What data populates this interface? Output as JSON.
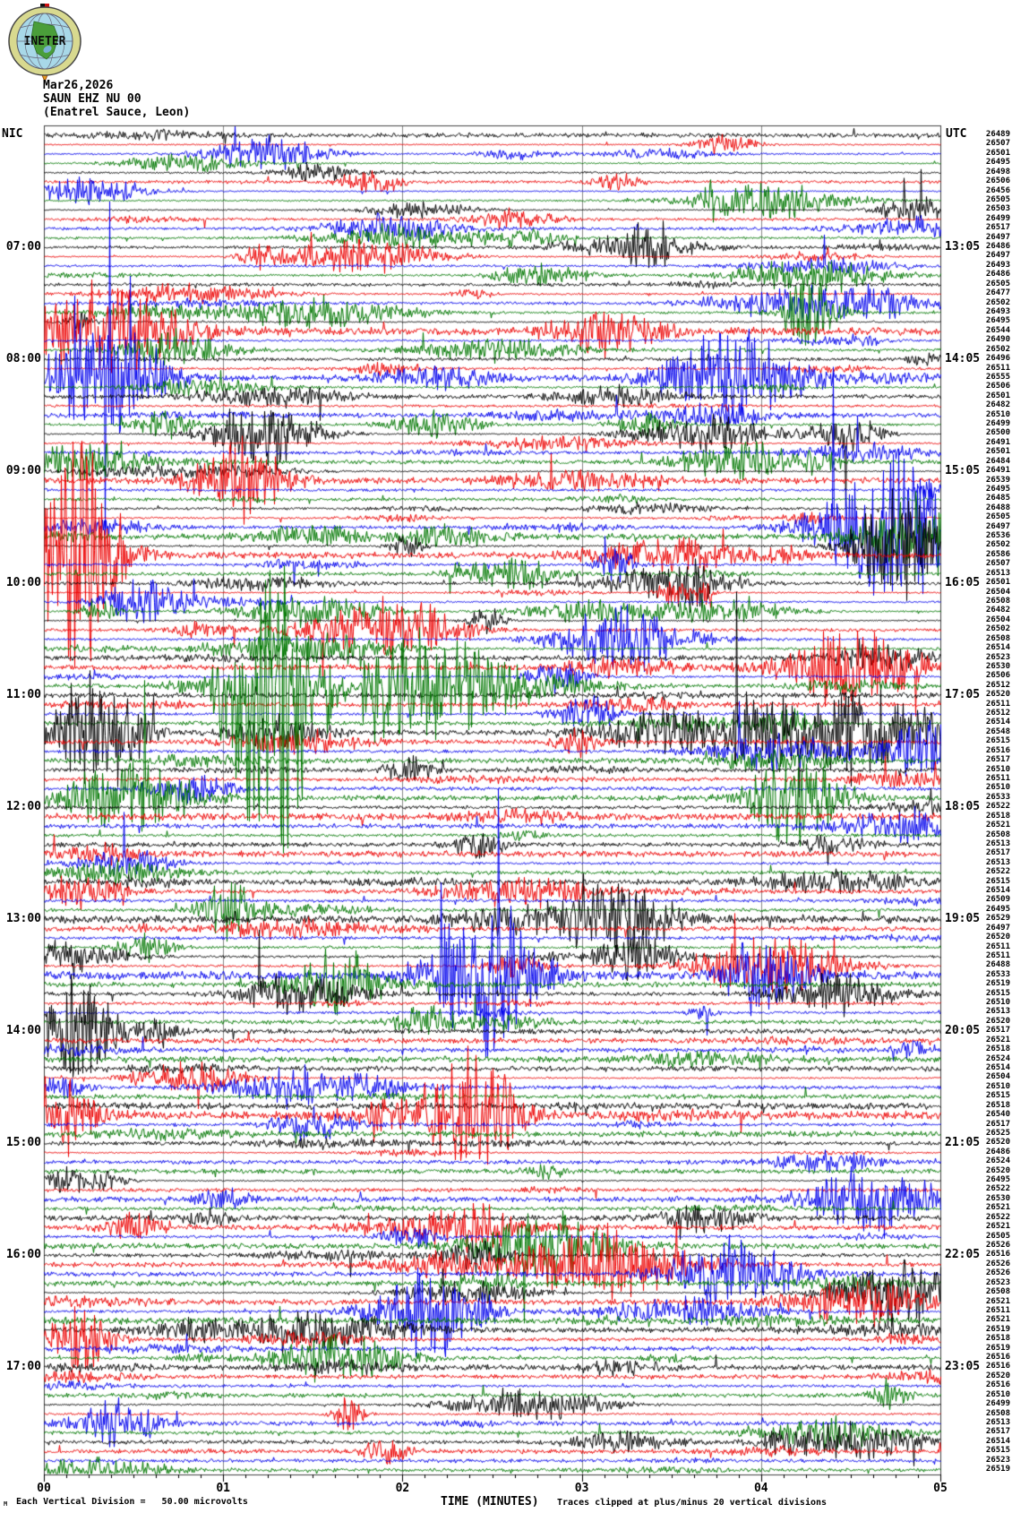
{
  "header": {
    "logo_text": "INETER",
    "date": "Mar26,2026",
    "station": "SAUN EHZ NU 00",
    "location": "(Enatrel Sauce, Leon)"
  },
  "axes": {
    "left_timezone_label": "NIC",
    "right_timezone_label": "UTC",
    "left_hour_labels": [
      "07:00",
      "08:00",
      "09:00",
      "10:00",
      "11:00",
      "12:00",
      "13:00",
      "14:00",
      "15:00",
      "16:00",
      "17:00"
    ],
    "right_hour_labels": [
      "13:05",
      "14:05",
      "15:05",
      "16:05",
      "17:05",
      "18:05",
      "19:05",
      "20:05",
      "21:05",
      "22:05",
      "23:05"
    ],
    "x_tick_labels": [
      "00",
      "01",
      "02",
      "03",
      "04",
      "05"
    ],
    "x_axis_title": "TIME (MINUTES)"
  },
  "footer": {
    "scale_marker": "M",
    "scale_text": "Each Vertical Division =   50.00 microvolts",
    "clip_text": "Traces clipped at plus/minus 20 vertical divisions"
  },
  "chart_data": {
    "type": "seismogram-helicorder",
    "title": "SAUN EHZ NU 00 (Enatrel Sauce, Leon) Mar26,2026",
    "xlabel": "TIME (MINUTES)",
    "x_range_minutes": [
      0,
      5
    ],
    "minor_divisions_per_minute": 8,
    "lines": 144,
    "minutes_per_line": 5,
    "first_line_start_local": "06:00",
    "first_line_end_utc": "12:05",
    "utc_offset_hours": -6,
    "vertical_division_microvolts": 50.0,
    "clip_divisions": 20,
    "trace_color_cycle": [
      "#000000",
      "#ee0000",
      "#0000ee",
      "#007700"
    ],
    "grid_color": "#888888",
    "row_values": [
      26489,
      26507,
      26501,
      26495,
      26498,
      26506,
      26456,
      26505,
      26503,
      26499,
      26517,
      26497,
      26486,
      26497,
      26493,
      26486,
      26505,
      26477,
      26502,
      26493,
      26495,
      26544,
      26490,
      26502,
      26496,
      26511,
      26555,
      26506,
      26501,
      26482,
      26510,
      26499,
      26500,
      26491,
      26501,
      26484,
      26491,
      26539,
      26495,
      26485,
      26488,
      26505,
      26497,
      26536,
      26502,
      26586,
      26507,
      26513,
      26501,
      26504,
      26508,
      26482,
      26504,
      26502,
      26508,
      26514,
      26523,
      26530,
      26506,
      26512,
      26520,
      26511,
      26512,
      26514,
      26548,
      26515,
      26516,
      26517,
      26510,
      26511,
      26510,
      26533,
      26522,
      26518,
      26521,
      26508,
      26513,
      26517,
      26513,
      26522,
      26515,
      26514,
      26509,
      26495,
      26529,
      26497,
      26520,
      26511,
      26511,
      26488,
      26533,
      26519,
      26515,
      26510,
      26513,
      26520,
      26517,
      26521,
      26518,
      26524,
      26514,
      26504,
      26510,
      26515,
      26518,
      26540,
      26517,
      26525,
      26520,
      26486,
      26524,
      26520,
      26495,
      26522,
      26530,
      26521,
      26522,
      26521,
      26505,
      26526,
      26516,
      26526,
      26526,
      26523,
      26508,
      26521,
      26511,
      26521,
      26519,
      26518,
      26519,
      26516,
      26516,
      26520,
      26516,
      26510,
      26499,
      26508,
      26513,
      26517,
      26514,
      26515,
      26523,
      26519
    ],
    "events": [
      {
        "row": 60,
        "start_min": 1.05,
        "end_min": 1.5,
        "amplitude_divisions": 20,
        "clipped": true
      },
      {
        "row": 60,
        "start_min": 1.4,
        "end_min": 2.6,
        "amplitude_divisions": 7,
        "clipped": false
      },
      {
        "row": 27,
        "start_min": 0.1,
        "end_min": 0.6,
        "amplitude_divisions": 8,
        "clipped": false
      },
      {
        "row": 46,
        "start_min": 0.0,
        "end_min": 0.4,
        "amplitude_divisions": 10,
        "clipped": false
      },
      {
        "row": 43,
        "start_min": 4.4,
        "end_min": 5.0,
        "amplitude_divisions": 9,
        "clipped": false
      },
      {
        "row": 45,
        "start_min": 4.55,
        "end_min": 4.95,
        "amplitude_divisions": 7,
        "clipped": false
      },
      {
        "row": 65,
        "start_min": 0.1,
        "end_min": 0.5,
        "amplitude_divisions": 8,
        "clipped": false
      },
      {
        "row": 72,
        "start_min": 4.0,
        "end_min": 4.4,
        "amplitude_divisions": 7,
        "clipped": false
      },
      {
        "row": 91,
        "start_min": 2.2,
        "end_min": 2.7,
        "amplitude_divisions": 8,
        "clipped": false
      },
      {
        "row": 97,
        "start_min": 0.0,
        "end_min": 0.35,
        "amplitude_divisions": 7,
        "clipped": false
      },
      {
        "row": 106,
        "start_min": 2.2,
        "end_min": 2.6,
        "amplitude_divisions": 7,
        "clipped": false
      },
      {
        "row": 127,
        "start_min": 1.9,
        "end_min": 2.4,
        "amplitude_divisions": 6,
        "clipped": false
      }
    ]
  }
}
